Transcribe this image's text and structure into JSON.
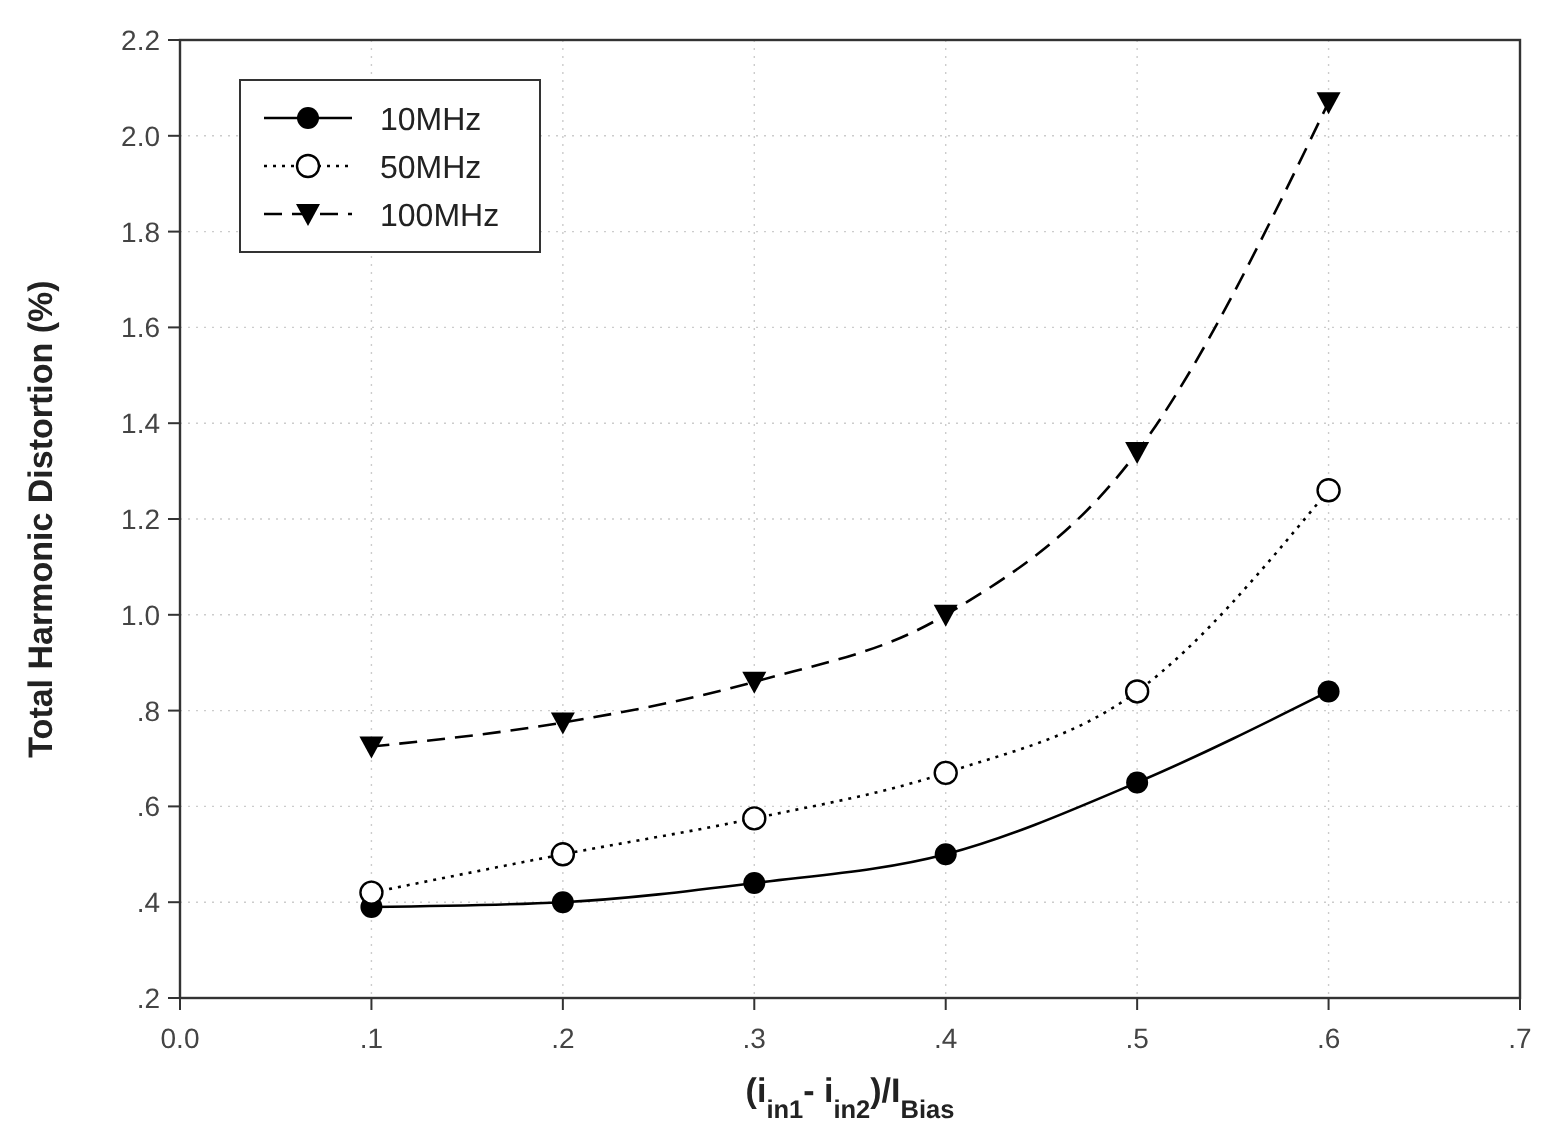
{
  "chart_data": {
    "type": "line",
    "xlabel": "(i$_{in1}$- i$_{in2}$)/I$_{Bias}$",
    "ylabel": "Total Harmonic Distortion (%)",
    "x": [
      0.1,
      0.2,
      0.3,
      0.4,
      0.5,
      0.6
    ],
    "series": [
      {
        "name": "10MHz",
        "color": "#000000",
        "values": [
          0.39,
          0.4,
          0.44,
          0.5,
          0.65,
          0.84
        ],
        "marker": "circle",
        "line_style": "solid"
      },
      {
        "name": "50MHz",
        "color": "#000000",
        "values": [
          0.42,
          0.5,
          0.575,
          0.67,
          0.84,
          1.26
        ],
        "marker": "circle-open",
        "line_style": "dotted"
      },
      {
        "name": "100MHz",
        "color": "#000000",
        "values": [
          0.725,
          0.775,
          0.86,
          1.0,
          1.34,
          2.07
        ],
        "marker": "triangle-down",
        "line_style": "dashed"
      }
    ],
    "xlim": [
      0,
      0.7
    ],
    "xticks": [
      {
        "value": 0,
        "label": "0.0"
      },
      {
        "value": 0.1,
        "label": ".1"
      },
      {
        "value": 0.2,
        "label": ".2"
      },
      {
        "value": 0.3,
        "label": ".3"
      },
      {
        "value": 0.4,
        "label": ".4"
      },
      {
        "value": 0.5,
        "label": ".5"
      },
      {
        "value": 0.6,
        "label": ".6"
      },
      {
        "value": 0.7,
        "label": ".7"
      }
    ],
    "ylim": [
      0.2,
      2.2
    ],
    "yticks": [
      {
        "value": 0.2,
        "label": ".2"
      },
      {
        "value": 0.4,
        "label": ".4"
      },
      {
        "value": 0.6,
        "label": ".6"
      },
      {
        "value": 0.8,
        "label": ".8"
      },
      {
        "value": 1.0,
        "label": "1.0"
      },
      {
        "value": 1.2,
        "label": "1.2"
      },
      {
        "value": 1.4,
        "label": "1.4"
      },
      {
        "value": 1.6,
        "label": "1.6"
      },
      {
        "value": 1.8,
        "label": "1.8"
      },
      {
        "value": 2.0,
        "label": "2.0"
      },
      {
        "value": 2.2,
        "label": "2.2"
      }
    ],
    "grid": true,
    "legend": "top left"
  }
}
